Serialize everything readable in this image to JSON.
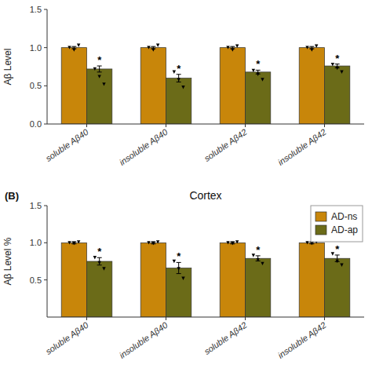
{
  "chart_data": [
    {
      "type": "bar",
      "categories": [
        "soluble Aβ40",
        "insoluble Aβ40",
        "soluble Aβ42",
        "insoluble Aβ42"
      ],
      "ylabel": "Aβ Level",
      "ylim": [
        0,
        1.5
      ],
      "yticks": [
        {
          "value": 0,
          "label": "0.0"
        },
        {
          "value": 0.5,
          "label": "0.5"
        },
        {
          "value": 1,
          "label": "1.0"
        },
        {
          "value": 1.5,
          "label": "1.5"
        }
      ],
      "grid": false,
      "series": [
        {
          "color": "#C8860A",
          "values": [
            1.0,
            1.0,
            1.0,
            1.0
          ],
          "errors": [
            0.015,
            0.015,
            0.015,
            0.015
          ],
          "points": [
            [
              1.0,
              0.97,
              1.03
            ],
            [
              1.0,
              0.97,
              1.03
            ],
            [
              1.0,
              0.97,
              1.02
            ],
            [
              1.0,
              0.97,
              1.02
            ]
          ]
        },
        {
          "color": "#6B6B18",
          "values": [
            0.72,
            0.6,
            0.68,
            0.76
          ],
          "errors": [
            0.04,
            0.05,
            0.025,
            0.025
          ],
          "points": [
            [
              0.72,
              0.62,
              0.52
            ],
            [
              0.68,
              0.58,
              0.48
            ],
            [
              0.7,
              0.65,
              0.58
            ],
            [
              0.78,
              0.73,
              0.68
            ]
          ],
          "annotations": [
            "*",
            "*",
            "*",
            "*"
          ]
        }
      ]
    },
    {
      "type": "bar",
      "title": "Cortex",
      "panel_label": "(B)",
      "categories": [
        "soluble Aβ40",
        "insoluble Aβ40",
        "soluble Aβ42",
        "insoluble Aβ42"
      ],
      "ylabel": "Aβ Level %",
      "ylim": [
        0.0,
        1.5
      ],
      "yticks": [
        {
          "value": 0.5,
          "label": "0.5"
        },
        {
          "value": 1.0,
          "label": "1.0"
        },
        {
          "value": 1.5,
          "label": "1.5"
        }
      ],
      "grid": false,
      "legend": "upper right",
      "series": [
        {
          "name": "AD-ns",
          "color": "#C8860A",
          "values": [
            1.0,
            1.0,
            1.0,
            1.0
          ],
          "errors": [
            0.015,
            0.015,
            0.015,
            0.015
          ],
          "points": [
            [
              1.0,
              0.99,
              1.01
            ],
            [
              1.0,
              0.99,
              1.01
            ],
            [
              1.0,
              0.99,
              1.01
            ],
            [
              1.0,
              0.99,
              1.01
            ]
          ]
        },
        {
          "name": "AD-ap",
          "color": "#6B6B18",
          "values": [
            0.75,
            0.66,
            0.79,
            0.79
          ],
          "errors": [
            0.05,
            0.075,
            0.035,
            0.045
          ],
          "points": [
            [
              0.8,
              0.73,
              0.65
            ],
            [
              0.75,
              0.65,
              0.52
            ],
            [
              0.83,
              0.77,
              0.72
            ],
            [
              0.85,
              0.75,
              0.7
            ]
          ],
          "annotations": [
            "*",
            "*",
            "*",
            "*"
          ]
        }
      ]
    }
  ]
}
